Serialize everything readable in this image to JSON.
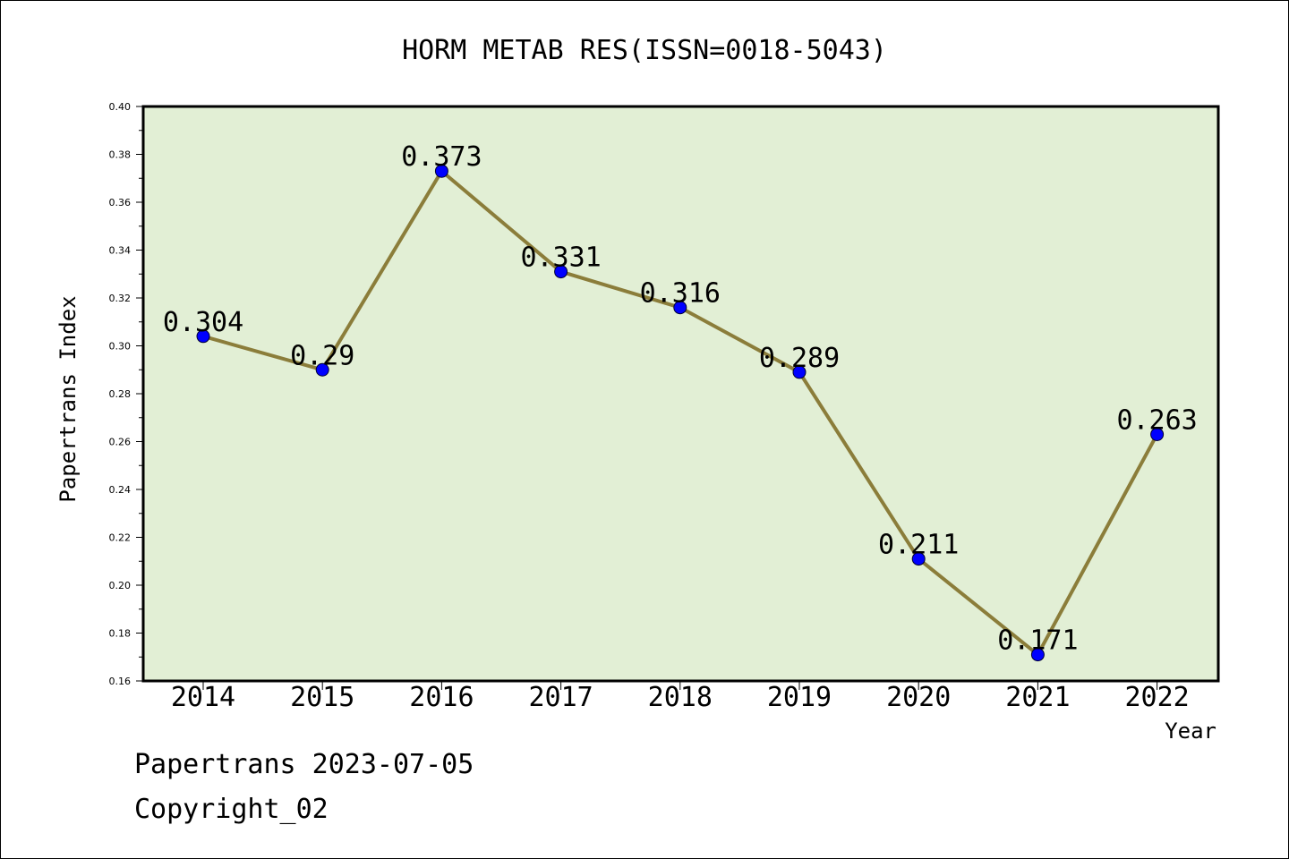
{
  "chart_data": {
    "type": "line",
    "title": "HORM METAB RES(ISSN=0018-5043)",
    "xlabel": "Year",
    "ylabel": "Papertrans Index",
    "categories": [
      "2014",
      "2015",
      "2016",
      "2017",
      "2018",
      "2019",
      "2020",
      "2021",
      "2022"
    ],
    "values": [
      0.304,
      0.29,
      0.373,
      0.331,
      0.316,
      0.289,
      0.211,
      0.171,
      0.263
    ],
    "data_labels": [
      "0.304",
      "0.29",
      "0.373",
      "0.331",
      "0.316",
      "0.289",
      "0.211",
      "0.171",
      "0.263"
    ],
    "ylim": [
      0.16,
      0.4
    ],
    "yticks": [
      "0.16",
      "0.18",
      "0.20",
      "0.22",
      "0.24",
      "0.26",
      "0.28",
      "0.30",
      "0.32",
      "0.34",
      "0.36",
      "0.38",
      "0.40"
    ],
    "grid": false,
    "colors": {
      "plot_background": "#e2efd5",
      "line": "#8b7d3a",
      "marker": "#0000ff"
    }
  },
  "footer": {
    "line1": "Papertrans 2023-07-05",
    "line2": "Copyright_02"
  }
}
